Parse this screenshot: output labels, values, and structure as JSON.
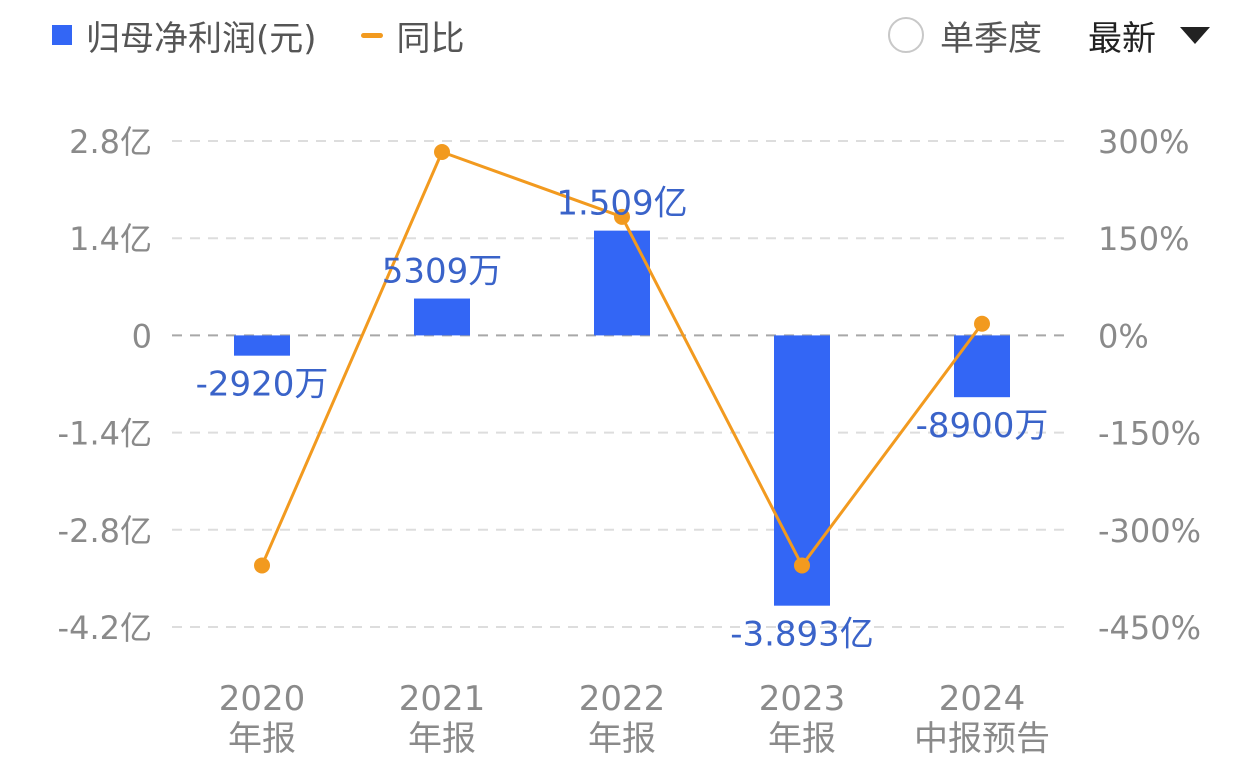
{
  "legend": {
    "bar_label": "归母净利润(元)",
    "line_label": "同比"
  },
  "controls": {
    "single_quarter_label": "单季度",
    "latest_label": "最新"
  },
  "colors": {
    "bar": "#3366f5",
    "line": "#f29a1f",
    "value_label": "#3a63c9",
    "axis_text": "#8a8a8a",
    "grid": "#dddddd"
  },
  "chart_data": {
    "type": "bar",
    "categories": [
      [
        "2020",
        "年报"
      ],
      [
        "2021",
        "年报"
      ],
      [
        "2022",
        "年报"
      ],
      [
        "2023",
        "年报"
      ],
      [
        "2024",
        "中报预告"
      ]
    ],
    "series": [
      {
        "name": "归母净利润(元)",
        "type": "bar",
        "axis": "left",
        "values": [
          -29200000,
          53090000,
          150900000,
          -389300000,
          -89000000
        ],
        "value_labels": [
          "-2920万",
          "5309万",
          "1.509亿",
          "-3.893亿",
          "-8900万"
        ]
      },
      {
        "name": "同比",
        "type": "line",
        "axis": "right",
        "values": [
          -355,
          283,
          183,
          -355,
          18
        ]
      }
    ],
    "y_left": {
      "ticks": [
        280000000,
        140000000,
        0,
        -140000000,
        -280000000,
        -420000000
      ],
      "tick_labels": [
        "2.8亿",
        "1.4亿",
        "0",
        "-1.4亿",
        "-2.8亿",
        "-4.2亿"
      ],
      "range": [
        -420000000,
        280000000
      ]
    },
    "y_right": {
      "ticks": [
        300,
        150,
        0,
        -150,
        -300,
        -450
      ],
      "tick_labels": [
        "300%",
        "150%",
        "0%",
        "-150%",
        "-300%",
        "-450%"
      ],
      "range": [
        -450,
        300
      ]
    },
    "grid": true,
    "legend_position": "top-left"
  }
}
